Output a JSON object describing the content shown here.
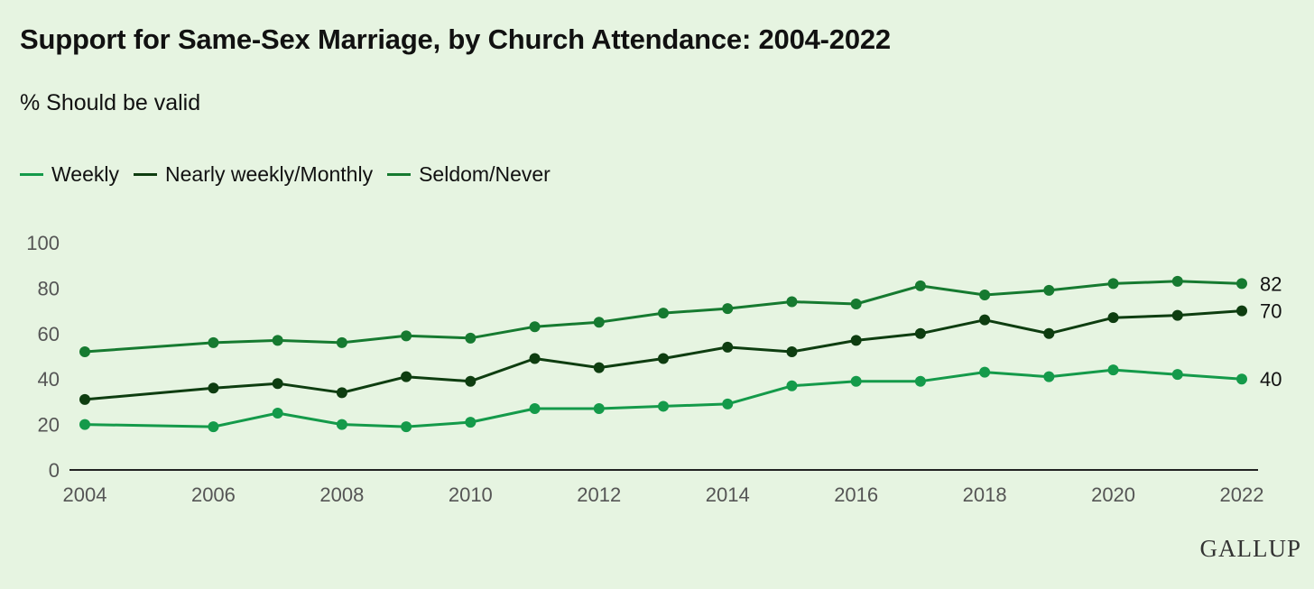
{
  "title": "Support for Same-Sex Marriage, by Church Attendance: 2004-2022",
  "subtitle": "% Should be valid",
  "logo": "GALLUP",
  "colors": {
    "Weekly": "#149a4a",
    "Nearly weekly/Monthly": "#0e3d10",
    "Seldom/Never": "#167a30"
  },
  "chart_data": {
    "type": "line",
    "title": "Support for Same-Sex Marriage, by Church Attendance: 2004-2022",
    "subtitle": "% Should be valid",
    "xlim": [
      2004,
      2022
    ],
    "ylim": [
      0,
      100
    ],
    "x_ticks": [
      "2004",
      "2006",
      "2008",
      "2010",
      "2012",
      "2014",
      "2016",
      "2018",
      "2020",
      "2022"
    ],
    "y_ticks": [
      "0",
      "20",
      "40",
      "60",
      "80",
      "100"
    ],
    "grid": false,
    "legend_position": "top-left",
    "x": [
      2004,
      2006,
      2007,
      2008,
      2009,
      2010,
      2011,
      2012,
      2013,
      2014,
      2015,
      2016,
      2017,
      2018,
      2019,
      2020,
      2021,
      2022
    ],
    "series": [
      {
        "name": "Weekly",
        "values": [
          20,
          19,
          25,
          20,
          19,
          21,
          27,
          27,
          28,
          29,
          37,
          39,
          39,
          43,
          41,
          44,
          42,
          40
        ],
        "end_label": "40"
      },
      {
        "name": "Nearly weekly/Monthly",
        "values": [
          31,
          36,
          38,
          34,
          41,
          39,
          49,
          45,
          49,
          54,
          52,
          57,
          60,
          66,
          60,
          67,
          68,
          70
        ],
        "end_label": "70"
      },
      {
        "name": "Seldom/Never",
        "values": [
          52,
          56,
          57,
          56,
          59,
          58,
          63,
          65,
          69,
          71,
          74,
          73,
          81,
          77,
          79,
          82,
          83,
          82
        ],
        "end_label": "82"
      }
    ]
  }
}
